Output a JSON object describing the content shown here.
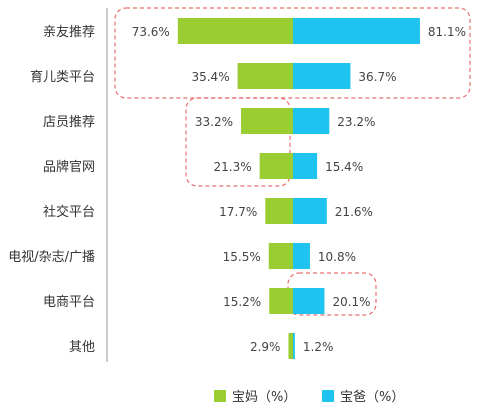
{
  "chart_data": {
    "type": "bar",
    "orientation": "horizontal-diverging",
    "categories": [
      "亲友推荐",
      "育儿类平台",
      "店员推荐",
      "品牌官网",
      "社交平台",
      "电视/杂志/广播",
      "电商平台",
      "其他"
    ],
    "series": [
      {
        "name": "宝妈（%）",
        "color": "#9ACD32",
        "direction": "left",
        "values": [
          73.6,
          35.4,
          33.2,
          21.3,
          17.7,
          15.5,
          15.2,
          2.9
        ],
        "labels": [
          "73.6%",
          "35.4%",
          "33.2%",
          "21.3%",
          "17.7%",
          "15.5%",
          "15.2%",
          "2.9%"
        ]
      },
      {
        "name": "宝爸（%）",
        "color": "#1FC3EF",
        "direction": "right",
        "values": [
          81.1,
          36.7,
          23.2,
          15.4,
          21.6,
          10.8,
          20.1,
          1.2
        ],
        "labels": [
          "81.1%",
          "36.7%",
          "23.2%",
          "15.4%",
          "21.6%",
          "10.8%",
          "20.1%",
          "1.2%"
        ]
      }
    ],
    "highlights": [
      {
        "series": "both",
        "categories": [
          "亲友推荐",
          "育儿类平台"
        ]
      },
      {
        "series": "宝妈（%）",
        "categories": [
          "店员推荐",
          "品牌官网"
        ]
      },
      {
        "series": "宝爸（%）",
        "categories": [
          "电商平台"
        ]
      }
    ],
    "legend": {
      "position": "bottom"
    },
    "grid": false,
    "highlight_color": "#E8706F"
  }
}
